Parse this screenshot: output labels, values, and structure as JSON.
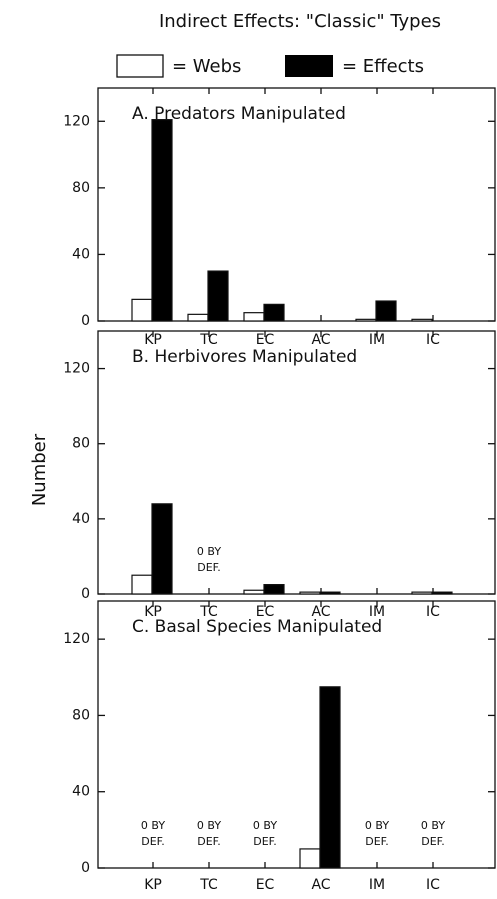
{
  "title": "Indirect Effects: \"Classic\" Types",
  "ylabel": "Number",
  "legend": [
    "= Webs",
    "= Effects"
  ],
  "chart_data": [
    {
      "type": "bar",
      "title": "A. Predators Manipulated",
      "categories": [
        "KP",
        "TC",
        "EC",
        "AC",
        "IM",
        "IC"
      ],
      "series": [
        {
          "name": "Webs",
          "color": "#ffffff",
          "values": [
            13,
            4,
            5,
            0,
            1,
            1
          ]
        },
        {
          "name": "Effects",
          "color": "#000000",
          "values": [
            121,
            30,
            10,
            0,
            12,
            0
          ]
        }
      ],
      "ylim": [
        0,
        140
      ],
      "yticks": [
        0,
        40,
        80,
        120
      ],
      "annotations": []
    },
    {
      "type": "bar",
      "title": "B. Herbivores Manipulated",
      "categories": [
        "KP",
        "TC",
        "EC",
        "AC",
        "IM",
        "IC"
      ],
      "series": [
        {
          "name": "Webs",
          "color": "#ffffff",
          "values": [
            10,
            null,
            2,
            1,
            0,
            1
          ]
        },
        {
          "name": "Effects",
          "color": "#000000",
          "values": [
            48,
            null,
            5,
            1,
            0,
            1
          ]
        }
      ],
      "ylim": [
        0,
        140
      ],
      "yticks": [
        0,
        40,
        80,
        120
      ],
      "annotations": [
        {
          "category": "TC",
          "text": [
            "0 BY",
            "DEF."
          ]
        }
      ]
    },
    {
      "type": "bar",
      "title": "C. Basal Species Manipulated",
      "categories": [
        "KP",
        "TC",
        "EC",
        "AC",
        "IM",
        "IC"
      ],
      "series": [
        {
          "name": "Webs",
          "color": "#ffffff",
          "values": [
            null,
            null,
            null,
            10,
            null,
            null
          ]
        },
        {
          "name": "Effects",
          "color": "#000000",
          "values": [
            null,
            null,
            null,
            95,
            null,
            null
          ]
        }
      ],
      "ylim": [
        0,
        140
      ],
      "yticks": [
        0,
        40,
        80,
        120
      ],
      "annotations": [
        {
          "category": "KP",
          "text": [
            "0 BY",
            "DEF."
          ]
        },
        {
          "category": "TC",
          "text": [
            "0 BY",
            "DEF."
          ]
        },
        {
          "category": "EC",
          "text": [
            "0 BY",
            "DEF."
          ]
        },
        {
          "category": "IM",
          "text": [
            "0 BY",
            "DEF."
          ]
        },
        {
          "category": "IC",
          "text": [
            "0 BY",
            "DEF."
          ]
        }
      ]
    }
  ]
}
